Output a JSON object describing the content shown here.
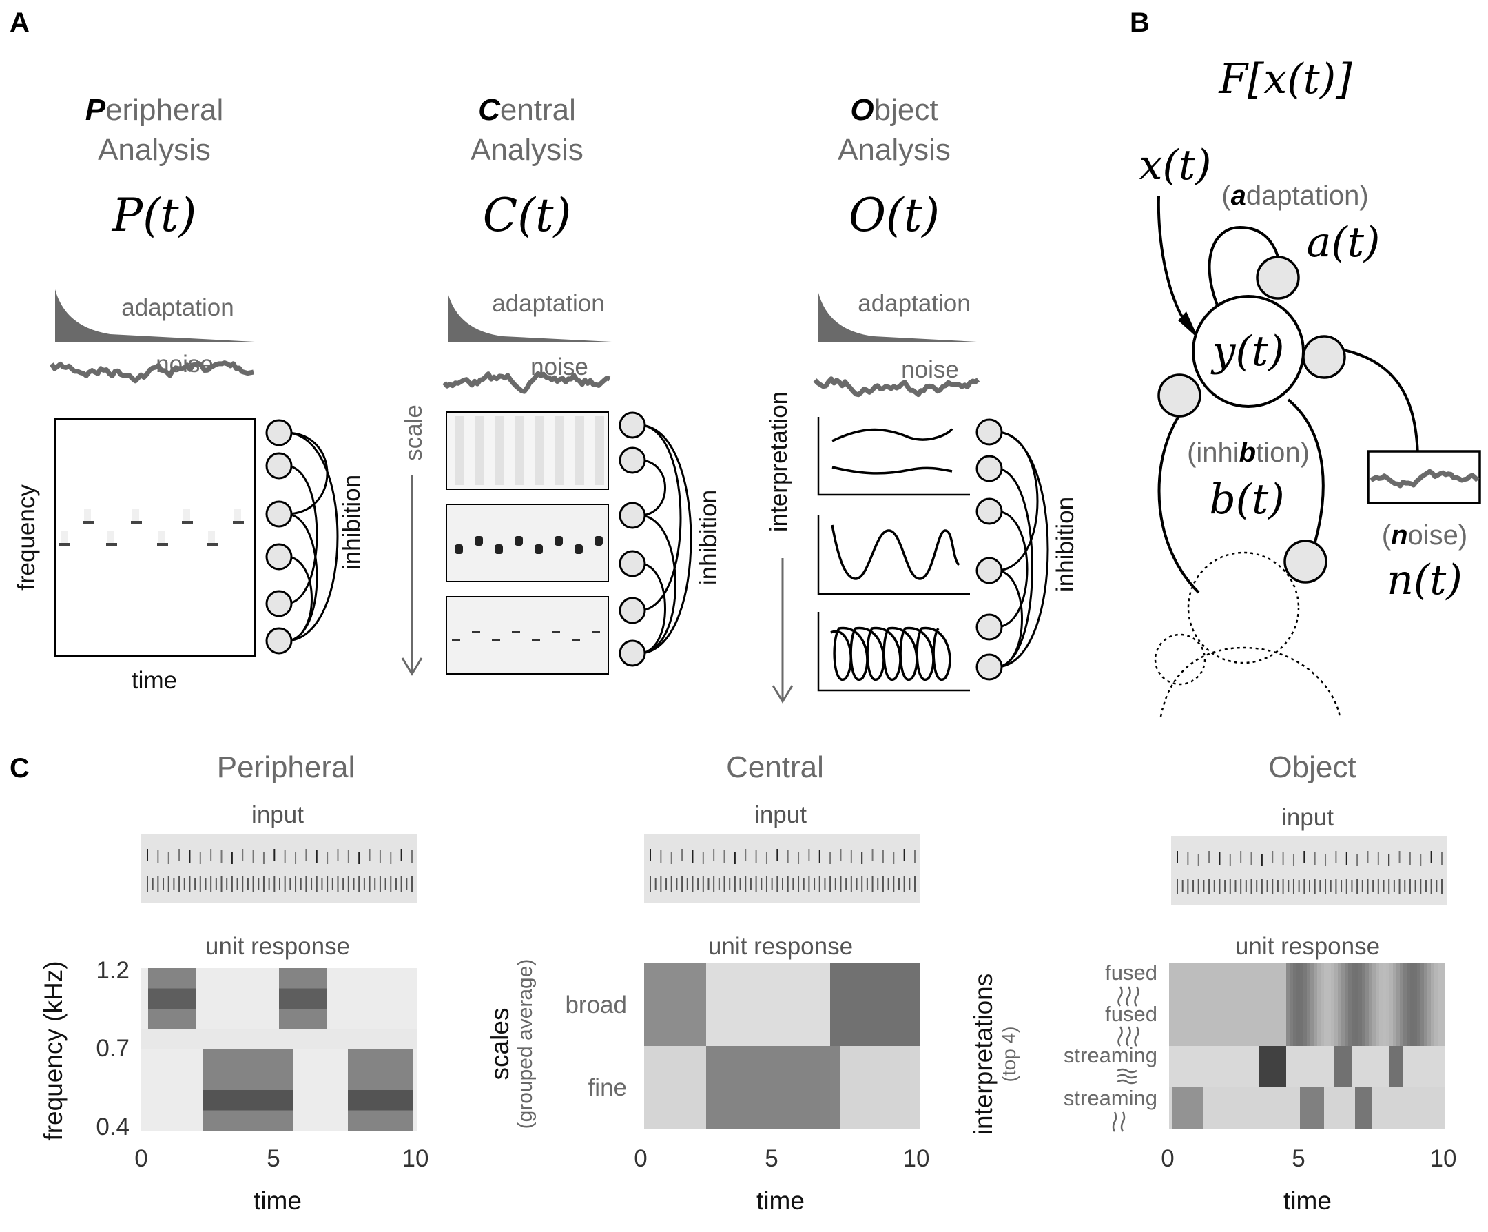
{
  "panels": {
    "A": {
      "letter": "A",
      "columns": [
        {
          "title_initial": "P",
          "title_rest": "eripheral",
          "title_line2": "Analysis",
          "symbol": "P(t)",
          "adaptation": "adaptation",
          "noise": "noise",
          "axis_y": "frequency",
          "axis_x": "time",
          "inhibition": "inhibition"
        },
        {
          "title_initial": "C",
          "title_rest": "entral",
          "title_line2": "Analysis",
          "symbol": "C(t)",
          "adaptation": "adaptation",
          "noise": "noise",
          "axis_side": "scale",
          "inhibition": "inhibition"
        },
        {
          "title_initial": "O",
          "title_rest": "bject",
          "title_line2": "Analysis",
          "symbol": "O(t)",
          "adaptation": "adaptation",
          "noise": "noise",
          "axis_side": "interpretation",
          "inhibition": "inhibition"
        }
      ]
    },
    "B": {
      "letter": "B",
      "formula": "F[x(t)]",
      "input": "x(t)",
      "unit": "y(t)",
      "adaptation_pre": "(",
      "adaptation_initial": "a",
      "adaptation_rest": "daptation)",
      "adaptation_sym": "a(t)",
      "inhibition_pre": "(inhi",
      "inhibition_initial": "b",
      "inhibition_rest": "tion)",
      "inhibition_sym": "b(t)",
      "noise_pre": "(",
      "noise_initial": "n",
      "noise_rest": "oise)",
      "noise_sym": "n(t)"
    },
    "C": {
      "letter": "C",
      "plots": [
        {
          "title": "Peripheral",
          "input_label": "input",
          "response_label": "unit response",
          "ylabel": "frequency (kHz)",
          "yticks": [
            "1.2",
            "0.7",
            "0.4"
          ],
          "xticks": [
            "0",
            "5",
            "10"
          ],
          "xlabel": "time"
        },
        {
          "title": "Central",
          "input_label": "input",
          "response_label": "unit response",
          "ylabel": "scales",
          "ylabel_sub": "(grouped average)",
          "rows": [
            "broad",
            "fine"
          ],
          "xticks": [
            "0",
            "5",
            "10"
          ],
          "xlabel": "time"
        },
        {
          "title": "Object",
          "input_label": "input",
          "response_label": "unit response",
          "ylabel": "interpretations",
          "ylabel_sub": "(top 4)",
          "rows": [
            "fused",
            "fused",
            "streaming",
            "streaming"
          ],
          "xticks": [
            "0",
            "5",
            "10"
          ],
          "xlabel": "time"
        }
      ]
    }
  },
  "colors": {
    "gray": "#6a6a6a",
    "node_fill": "#e6e6e6",
    "dark": "#111111"
  }
}
